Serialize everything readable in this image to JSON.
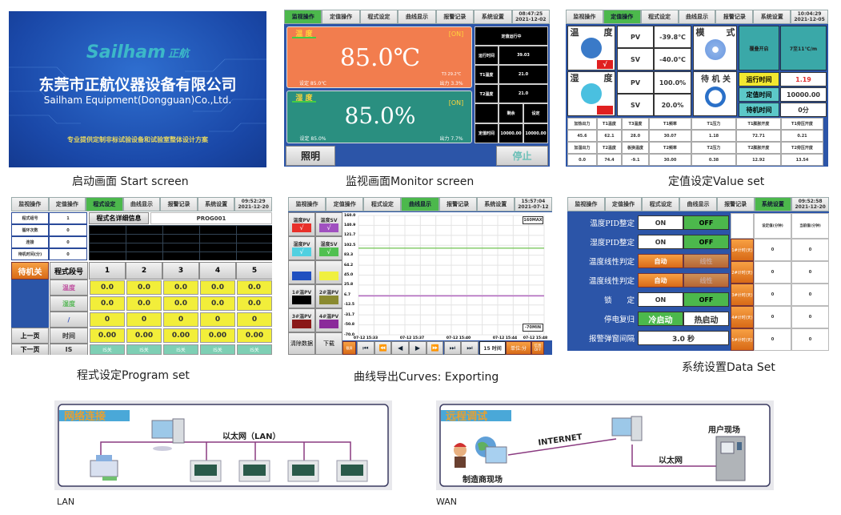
{
  "tabs": [
    "监视操作",
    "定值操作",
    "程式设定",
    "曲线显示",
    "报警记录",
    "系统设置"
  ],
  "start": {
    "logo_en": "Sailham",
    "logo_cn": "正航",
    "company_cn": "东莞市正航仪器设备有限公司",
    "company_en": "Sailham Equipment(Dongguan)Co.,Ltd.",
    "slogan": "专业提供定制非标试验设备和试验室整体设计方案",
    "caption": "启动画面 Start screen"
  },
  "monitor": {
    "active_tab": 0,
    "time": "08:47:25",
    "date": "2021-12-02",
    "temp": {
      "label": "温 度",
      "status": "[ON]",
      "value": "85.0℃",
      "set": "设定 85.0℃",
      "t3": "T3 29.2℃",
      "output": "出力 3.3%"
    },
    "humi": {
      "label": "湿 度",
      "status": "[ON]",
      "value": "85.0%",
      "set": "设定 85.0%",
      "output": "出力 7.7%"
    },
    "side": {
      "status": "定值运行中",
      "rows": [
        [
          "运行时间",
          "39.03"
        ],
        [
          "T1温度",
          "21.0"
        ],
        [
          "T2温度",
          "21.0"
        ]
      ],
      "remain_label": "剩余",
      "set_label": "设定",
      "fixed_label": "定值时间",
      "remain_value": "10000.00",
      "set_value": "10000.00"
    },
    "light": "照明",
    "stop": "停止",
    "caption": "监视画面Monitor screen",
    "colors": {
      "temp": "#f27d4e",
      "humi": "#2a8f80",
      "body": "#2c55a8"
    }
  },
  "value": {
    "active_tab": 1,
    "time": "10:04:29",
    "date": "2021-12-05",
    "temp": {
      "l1": "温",
      "l2": "度",
      "pv_label": "PV",
      "pv": "-39.8℃",
      "sv_label": "SV",
      "sv": "-40.0℃",
      "check": "√"
    },
    "humi": {
      "l1": "湿",
      "l2": "度",
      "pv_label": "PV",
      "pv": "100.0%",
      "sv_label": "SV",
      "sv": "20.0%"
    },
    "mode": {
      "l1": "模",
      "l2": "式",
      "btn1": "覆叠开启",
      "btn2": "7至11℃/m"
    },
    "standby": {
      "label": "待 机 关",
      "run_label": "运行时间",
      "run": "1.19",
      "fixed_label": "定值时间",
      "fixed": "10000.00",
      "wait_label": "待机时间",
      "wait": "0分"
    },
    "table": [
      [
        "加热出力",
        "T1温度",
        "T3温度",
        "T1频率",
        "T1压力",
        "T1膨胀开度",
        "T1旁压开度"
      ],
      [
        "45.6",
        "62.1",
        "28.0",
        "30.07",
        "1.18",
        "72.71",
        "0.21"
      ],
      [
        "加湿出力",
        "T2温度",
        "板换温度",
        "T2频率",
        "T2压力",
        "T2膨胀开度",
        "T2旁压开度"
      ],
      [
        "0.0",
        "74.4",
        "-9.1",
        "30.00",
        "0.38",
        "12.92",
        "13.54"
      ]
    ],
    "caption": "定值设定Value set"
  },
  "program": {
    "active_tab": 2,
    "time": "09:52:29",
    "date": "2021-12-20",
    "info": [
      [
        "程式组号",
        "1"
      ],
      [
        "循环次数",
        "0"
      ],
      [
        "连接",
        "0"
      ],
      [
        "待机时间(分)",
        "0"
      ]
    ],
    "name_label": "程式名详细信息",
    "name": "PROG001",
    "standby": "待机关",
    "seg_label": "程式段号",
    "segments": [
      "1",
      "2",
      "3",
      "4",
      "5"
    ],
    "rows": [
      {
        "label": "温度",
        "values": [
          "0.0",
          "0.0",
          "0.0",
          "0.0",
          "0.0"
        ]
      },
      {
        "label": "湿度",
        "values": [
          "0.0",
          "0.0",
          "0.0",
          "0.0",
          "0.0"
        ]
      },
      {
        "label": "/",
        "values": [
          "0",
          "0",
          "0",
          "0",
          "0"
        ]
      },
      {
        "label": "时间",
        "values": [
          "0.00",
          "0.00",
          "0.00",
          "0.00",
          "0.00"
        ]
      },
      {
        "label": "IS",
        "values": [
          "IS关",
          "IS关",
          "IS关",
          "IS关",
          "IS关"
        ]
      }
    ],
    "prev": "上一页",
    "next": "下一页",
    "caption": "程式设定Program set"
  },
  "curves": {
    "active_tab": 3,
    "time": "15:57:04",
    "date": "2021-07-12",
    "legend": [
      {
        "label": "温度PV",
        "color": "#e8302a",
        "check": "√"
      },
      {
        "label": "温度SV",
        "color": "#a050c0",
        "check": "√"
      },
      {
        "label": "湿度PV",
        "color": "#50d0e0",
        "check": "√"
      },
      {
        "label": "湿度SV",
        "color": "#50c050",
        "check": "√"
      },
      {
        "label": "",
        "color": "#2050c0",
        "check": ""
      },
      {
        "label": "",
        "color": "#f0f040",
        "check": ""
      },
      {
        "label": "1#温PV",
        "color": "#000000",
        "check": ""
      },
      {
        "label": "2#温PV",
        "color": "#8a8a30",
        "check": ""
      },
      {
        "label": "3#温PV",
        "color": "#8a1818",
        "check": ""
      },
      {
        "label": "4#温PV",
        "color": "#8a2a9a",
        "check": ""
      }
    ],
    "clear": "清除数据",
    "download": "下载",
    "y_ticks": [
      "160.0",
      "140.9",
      "121.7",
      "102.5",
      "83.3",
      "64.2",
      "45.0",
      "25.8",
      "6.7",
      "-12.5",
      "-31.7",
      "-50.8",
      "-70.0"
    ],
    "x_ticks": [
      "07-12 15:33",
      "07-12 15:37",
      "07-12 15:40",
      "07-12 15:44",
      "07-12 15:48"
    ],
    "max_label": "160MAX",
    "min_label": "-70MIN",
    "ylim": [
      -70,
      160
    ],
    "lines": [
      {
        "color": "#7cc860",
        "value": 97
      },
      {
        "color": "#b060c0",
        "value": 5
      }
    ],
    "screenshot": "截屏",
    "nav": [
      "⏮",
      "⏪",
      "◀",
      "▶",
      "⏩",
      "⏭",
      "⏭"
    ],
    "interval": "15 时间",
    "unit": "单位:分",
    "info": "信息OFF",
    "caption": "曲线导出Curves: Exporting"
  },
  "system": {
    "active_tab": 5,
    "time": "09:52:58",
    "date": "2021-12-20",
    "rows": [
      {
        "label": "温度PID整定",
        "a": "ON",
        "b": "OFF",
        "style": "onoff"
      },
      {
        "label": "湿度PID整定",
        "a": "ON",
        "b": "OFF",
        "style": "onoff"
      },
      {
        "label": "温度线性判定",
        "a": "自动",
        "b": "线性",
        "style": "auto"
      },
      {
        "label": "温度线性判定",
        "a": "自动",
        "b": "线性",
        "style": "auto"
      },
      {
        "label": "锁　　定",
        "a": "ON",
        "b": "OFF",
        "style": "onoff"
      },
      {
        "label": "停电复归",
        "a": "冷启动",
        "b": "热启动",
        "style": "cold"
      },
      {
        "label": "报警弹窗间隔",
        "a": "3.0 秒",
        "b": "",
        "style": "span"
      }
    ],
    "timer_head": [
      "设定值(分钟)",
      "当前值(分钟)"
    ],
    "timers": [
      [
        "1#计时(天)",
        "0",
        "0"
      ],
      [
        "2#计时(天)",
        "0",
        "0"
      ],
      [
        "3#计时(天)",
        "0",
        "0"
      ],
      [
        "4#计时(天)",
        "0",
        "0"
      ],
      [
        "5#计时(天)",
        "0",
        "0"
      ]
    ],
    "caption": "系统设置Data Set"
  },
  "lan": {
    "title": "网络连接",
    "net": "以太网（LAN）",
    "caption": "LAN"
  },
  "wan": {
    "title": "远程调试",
    "internet": "INTERNET",
    "ethernet": "以太网",
    "user_site": "用户现场",
    "maker_site": "制造商现场",
    "caption": "WAN"
  }
}
